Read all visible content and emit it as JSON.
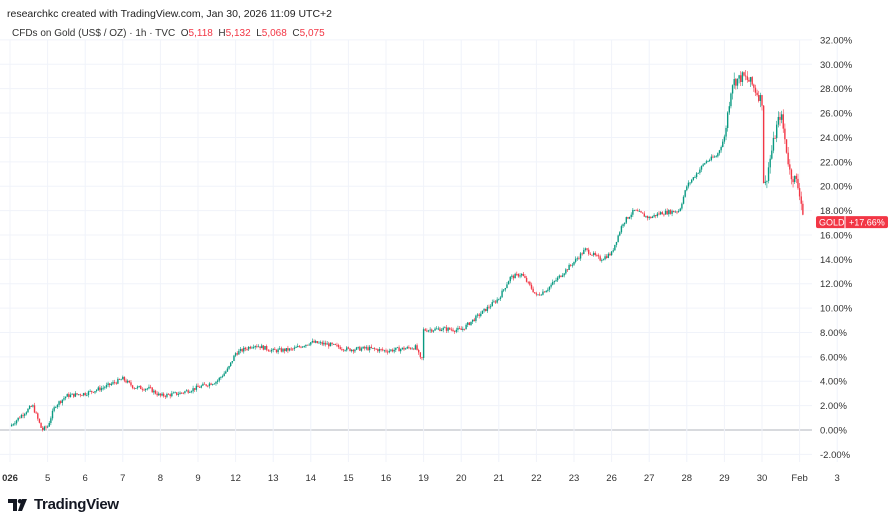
{
  "credit": "researchkc created with TradingView.com, Jan 30, 2026 11:09 UTC+2",
  "legend": {
    "symbol": "CFDs on Gold (US$ / OZ) · 1h · TVC",
    "o_label": "O",
    "o": "5,118",
    "h_label": "H",
    "h": "5,132",
    "l_label": "L",
    "l": "5,068",
    "c_label": "C",
    "c": "5,075"
  },
  "price_tag": {
    "name": "GOLD",
    "value": "+17.66%"
  },
  "colors": {
    "up": "#089981",
    "down": "#f23645",
    "grid": "#f0f3fa"
  },
  "logo": "TradingView",
  "chart_data": {
    "type": "candlestick",
    "ylabel": "% change",
    "ylim": [
      -2,
      32
    ],
    "yticks": [
      "32.00%",
      "30.00%",
      "28.00%",
      "26.00%",
      "24.00%",
      "22.00%",
      "20.00%",
      "18.00%",
      "16.00%",
      "14.00%",
      "12.00%",
      "10.00%",
      "8.00%",
      "6.00%",
      "4.00%",
      "2.00%",
      "0.00%",
      "-2.00%"
    ],
    "ytick_values": [
      32,
      30,
      28,
      26,
      24,
      22,
      20,
      18,
      16,
      14,
      12,
      10,
      8,
      6,
      4,
      2,
      0,
      -2
    ],
    "xticks": [
      "026",
      "5",
      "6",
      "7",
      "8",
      "9",
      "12",
      "13",
      "14",
      "15",
      "16",
      "19",
      "20",
      "21",
      "22",
      "23",
      "26",
      "27",
      "28",
      "29",
      "30",
      "Feb",
      "3"
    ],
    "path": [
      [
        0,
        0.3
      ],
      [
        0.3,
        1.2
      ],
      [
        0.6,
        2
      ],
      [
        0.75,
        0.8
      ],
      [
        0.85,
        0
      ],
      [
        1,
        0.3
      ],
      [
        1.2,
        2
      ],
      [
        1.5,
        2.8
      ],
      [
        2,
        3
      ],
      [
        2.5,
        3.5
      ],
      [
        3,
        4.2
      ],
      [
        3.3,
        3.5
      ],
      [
        3.7,
        3.4
      ],
      [
        4,
        2.8
      ],
      [
        4.5,
        3
      ],
      [
        5,
        3.5
      ],
      [
        5.5,
        4
      ],
      [
        5.8,
        5
      ],
      [
        6,
        6.3
      ],
      [
        6.5,
        7
      ],
      [
        7,
        6.5
      ],
      [
        7.5,
        6.6
      ],
      [
        8,
        7.2
      ],
      [
        8.5,
        7
      ],
      [
        9,
        6.6
      ],
      [
        9.5,
        6.7
      ],
      [
        10,
        6.5
      ],
      [
        10.8,
        6.8
      ],
      [
        10.95,
        5.5
      ],
      [
        11,
        8.2
      ],
      [
        11.5,
        8.3
      ],
      [
        12,
        8.2
      ],
      [
        12.5,
        9.5
      ],
      [
        13,
        10.8
      ],
      [
        13.3,
        12.5
      ],
      [
        13.6,
        12.8
      ],
      [
        13.9,
        11.5
      ],
      [
        14,
        11
      ],
      [
        14.3,
        11.6
      ],
      [
        15,
        13.8
      ],
      [
        15.3,
        14.8
      ],
      [
        15.7,
        14
      ],
      [
        16,
        14.5
      ],
      [
        16.3,
        17
      ],
      [
        16.6,
        18
      ],
      [
        17,
        17.4
      ],
      [
        17.3,
        17.8
      ],
      [
        17.8,
        18
      ],
      [
        18,
        20
      ],
      [
        18.5,
        22
      ],
      [
        18.8,
        22.5
      ],
      [
        19,
        24
      ],
      [
        19.2,
        28.5
      ],
      [
        19.5,
        29
      ],
      [
        19.7,
        28.5
      ],
      [
        19.9,
        27.5
      ],
      [
        20,
        27
      ],
      [
        20.05,
        19.5
      ],
      [
        20.2,
        22
      ],
      [
        20.4,
        25
      ],
      [
        20.5,
        26
      ],
      [
        20.6,
        24
      ],
      [
        20.75,
        21
      ],
      [
        20.9,
        20.5
      ],
      [
        21,
        19.5
      ],
      [
        21.1,
        17.66
      ]
    ],
    "last_value": 17.66
  }
}
